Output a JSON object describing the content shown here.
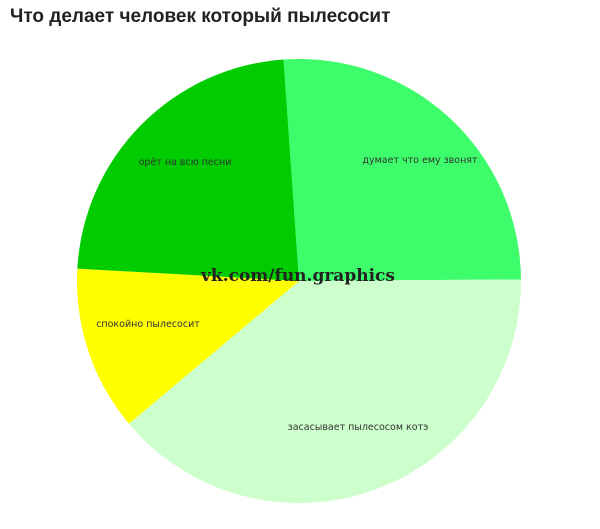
{
  "chart_data": {
    "type": "pie",
    "title": "Что делает человек который пылесосит",
    "start_angle_deg": -4,
    "direction": "clockwise",
    "slices": [
      {
        "label": "думает что ему звонят",
        "value": 26,
        "color": "#3dfd6a"
      },
      {
        "label": "засасывает пылесосом котэ",
        "value": 39,
        "color": "#ccffcc"
      },
      {
        "label": "спокойно пылесосит",
        "value": 12,
        "color": "#ffff00"
      },
      {
        "label": "орёт на всю песни",
        "value": 23,
        "color": "#00cc00"
      }
    ],
    "legend": "none",
    "watermark": "vk.com/fun.graphics"
  }
}
